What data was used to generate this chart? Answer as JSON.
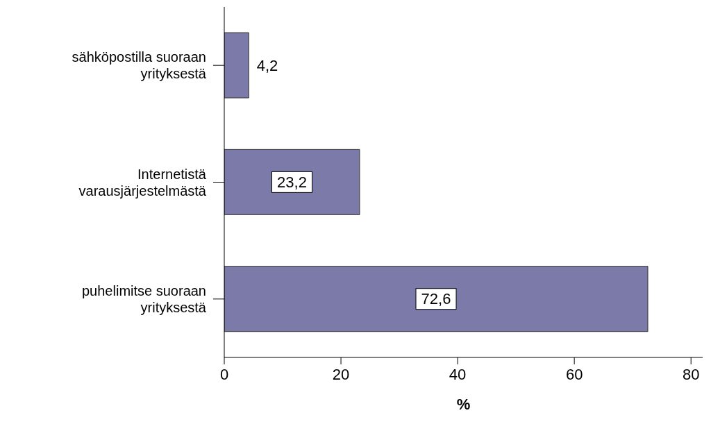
{
  "chart_data": {
    "type": "bar",
    "orientation": "horizontal",
    "xlabel": "%",
    "categories": [
      "sähköpostilla suoraan yrityksestä",
      "Internetistä varausjärjestelmästä",
      "puhelimitse suoraan yrityksestä"
    ],
    "values": [
      4.2,
      23.2,
      72.6
    ],
    "value_labels": [
      "4,2",
      "23,2",
      "72,6"
    ],
    "color": "#7b7aa8",
    "xlim": [
      0,
      82
    ],
    "xticks": [
      0,
      20,
      40,
      60,
      80
    ],
    "grid": false,
    "legend": false
  }
}
